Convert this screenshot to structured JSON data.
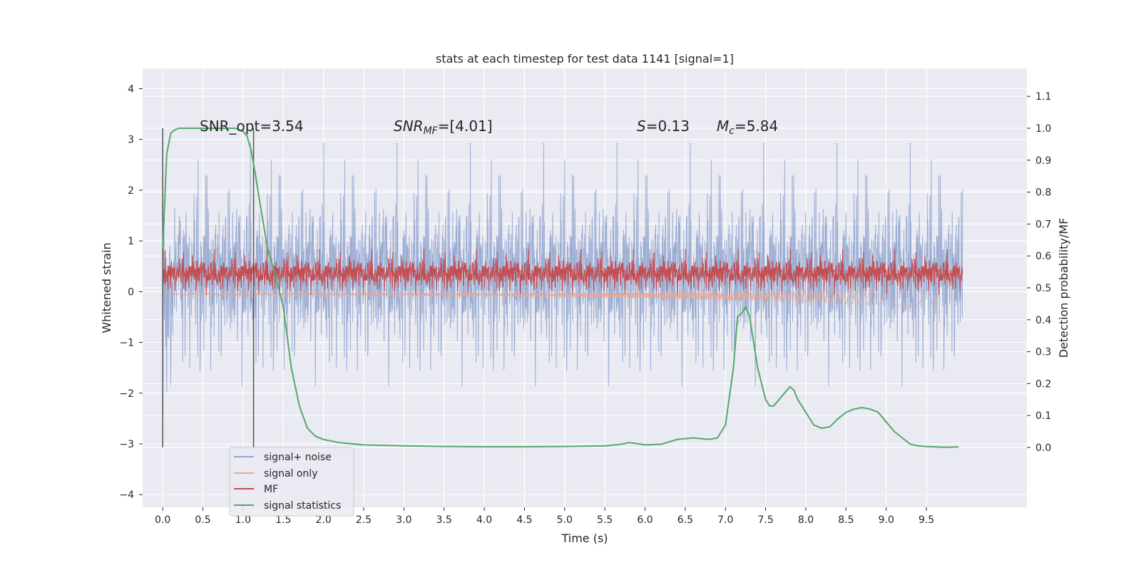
{
  "chart_data": {
    "type": "line",
    "title": "stats at each timestep for test data 1141 [signal=1]",
    "xlabel": "Time (s)",
    "ylabel": "Whitened strain",
    "y2label": "Detection probability/MF",
    "xlim": [
      -0.25,
      10.75
    ],
    "ylim": [
      -4.25,
      4.4
    ],
    "y2lim": [
      -0.1875,
      1.1875
    ],
    "xticks": [
      "0.0",
      "0.5",
      "1.0",
      "1.5",
      "2.0",
      "2.5",
      "3.0",
      "3.5",
      "4.0",
      "4.5",
      "5.0",
      "5.5",
      "6.0",
      "6.5",
      "7.0",
      "7.5",
      "8.0",
      "8.5",
      "9.0",
      "9.5"
    ],
    "yticks": [
      "−4",
      "−3",
      "−2",
      "−1",
      "0",
      "1",
      "2",
      "3",
      "4"
    ],
    "y2ticks": [
      "0.0",
      "0.1",
      "0.2",
      "0.3",
      "0.4",
      "0.5",
      "0.6",
      "0.7",
      "0.8",
      "0.9",
      "1.0",
      "1.1"
    ],
    "grid": true,
    "legend_placement": "lower-left",
    "vlines": [
      0.0,
      1.13
    ],
    "annotations": {
      "snr_opt": "SNR_opt=3.54",
      "snr_mf_sym": "SNR",
      "snr_mf_sub": "MF",
      "snr_mf_val": "=[4.01]",
      "s_sym": "S",
      "s_val": "=0.13",
      "mc_sym": "M",
      "mc_sub": "c",
      "mc_val": "=5.84"
    },
    "series": [
      {
        "name": "signal+ noise",
        "color": "#92a6cf",
        "axis": "left",
        "envelope": [
          -1.3,
          1.3
        ],
        "duration": [
          0,
          9.95
        ]
      },
      {
        "name": "signal only",
        "color": "#e8a792",
        "axis": "left",
        "approx_range": [
          -0.35,
          0.05
        ],
        "duration": [
          0,
          9.65
        ]
      },
      {
        "name": "MF",
        "color": "#c44e52",
        "axis": "left",
        "approx_range": [
          0.0,
          0.7
        ],
        "duration": [
          0,
          9.95
        ]
      },
      {
        "name": "signal statistics",
        "color": "#55a868",
        "axis": "right",
        "x": [
          0.0,
          0.05,
          0.1,
          0.15,
          0.2,
          0.3,
          0.5,
          0.7,
          0.9,
          1.0,
          1.05,
          1.1,
          1.15,
          1.2,
          1.3,
          1.4,
          1.5,
          1.6,
          1.7,
          1.8,
          1.9,
          2.0,
          2.2,
          2.5,
          3.0,
          3.5,
          4.0,
          4.5,
          5.0,
          5.5,
          5.7,
          5.8,
          5.9,
          6.0,
          6.2,
          6.4,
          6.6,
          6.8,
          6.9,
          6.95,
          7.0,
          7.1,
          7.15,
          7.2,
          7.25,
          7.3,
          7.4,
          7.5,
          7.55,
          7.6,
          7.7,
          7.8,
          7.85,
          7.9,
          8.0,
          8.1,
          8.2,
          8.3,
          8.4,
          8.5,
          8.6,
          8.7,
          8.8,
          8.9,
          9.0,
          9.1,
          9.2,
          9.3,
          9.4,
          9.5,
          9.6,
          9.7,
          9.8,
          9.9
        ],
        "y": [
          0.62,
          0.92,
          0.985,
          0.995,
          1.0,
          1.0,
          1.0,
          1.0,
          1.0,
          0.99,
          0.975,
          0.93,
          0.86,
          0.78,
          0.63,
          0.54,
          0.44,
          0.25,
          0.13,
          0.06,
          0.035,
          0.025,
          0.015,
          0.008,
          0.005,
          0.003,
          0.002,
          0.002,
          0.003,
          0.005,
          0.01,
          0.015,
          0.012,
          0.008,
          0.01,
          0.025,
          0.03,
          0.025,
          0.03,
          0.05,
          0.07,
          0.25,
          0.41,
          0.42,
          0.44,
          0.41,
          0.25,
          0.15,
          0.13,
          0.13,
          0.16,
          0.19,
          0.18,
          0.15,
          0.11,
          0.07,
          0.06,
          0.065,
          0.09,
          0.11,
          0.12,
          0.125,
          0.12,
          0.11,
          0.08,
          0.05,
          0.03,
          0.01,
          0.005,
          0.003,
          0.002,
          0.001,
          0.001,
          0.002
        ]
      }
    ]
  }
}
